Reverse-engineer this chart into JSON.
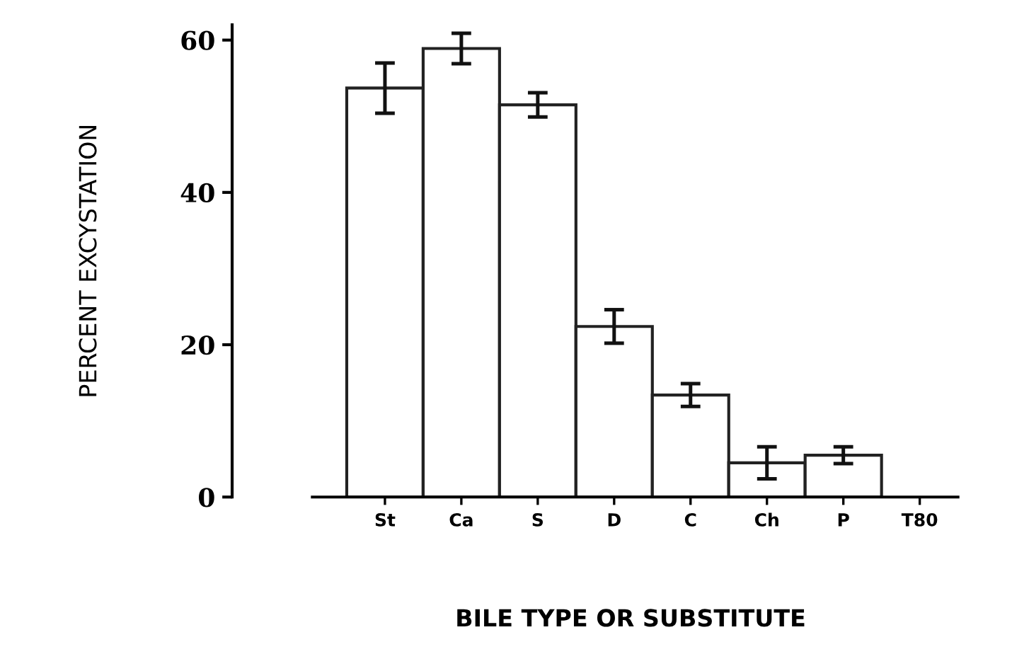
{
  "chart_data": {
    "type": "bar",
    "xlabel": "BILE TYPE OR SUBSTITUTE",
    "ylabel": "PERCENT EXCYSTATION",
    "categories": [
      "St",
      "Ca",
      "S",
      "D",
      "C",
      "Ch",
      "P",
      "T80"
    ],
    "values": [
      53.7,
      58.9,
      51.5,
      22.4,
      13.4,
      4.5,
      5.5,
      0
    ],
    "errors": [
      3.3,
      2.0,
      1.6,
      2.2,
      1.5,
      2.1,
      1.1,
      null
    ],
    "color": "#ffffff",
    "ylim": [
      0,
      62
    ],
    "yticks": [
      0,
      20,
      40,
      60
    ],
    "grid": false,
    "legend": false
  }
}
